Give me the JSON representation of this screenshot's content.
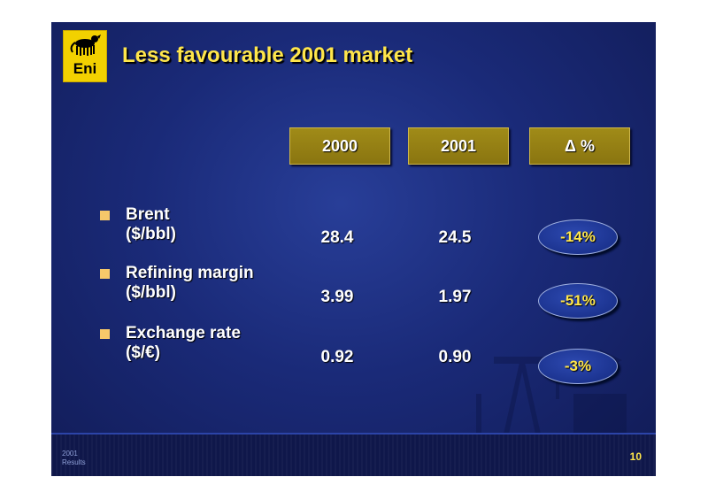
{
  "slide": {
    "title": "Less favourable 2001 market",
    "logo_text": "Eni",
    "page_number": "10",
    "footer": {
      "line1": "2001",
      "line2": "Results"
    }
  },
  "table": {
    "headers": [
      "2000",
      "2001",
      "Δ %"
    ],
    "rows": [
      {
        "label_line1": "Brent",
        "label_line2": "($/bbl)",
        "v2000": "28.4",
        "v2001": "24.5",
        "delta": "-14%"
      },
      {
        "label_line1": "Refining margin",
        "label_line2": "($/bbl)",
        "v2000": "3.99",
        "v2001": "1.97",
        "delta": "-51%"
      },
      {
        "label_line1": "Exchange rate",
        "label_line2": "($/€)",
        "v2000": "0.92",
        "v2001": "0.90",
        "delta": "-3%"
      }
    ]
  },
  "colors": {
    "title": "#ffe64a",
    "header_fill": "#8a7510",
    "bullet": "#f6c86a",
    "background": "#1a2a78"
  }
}
